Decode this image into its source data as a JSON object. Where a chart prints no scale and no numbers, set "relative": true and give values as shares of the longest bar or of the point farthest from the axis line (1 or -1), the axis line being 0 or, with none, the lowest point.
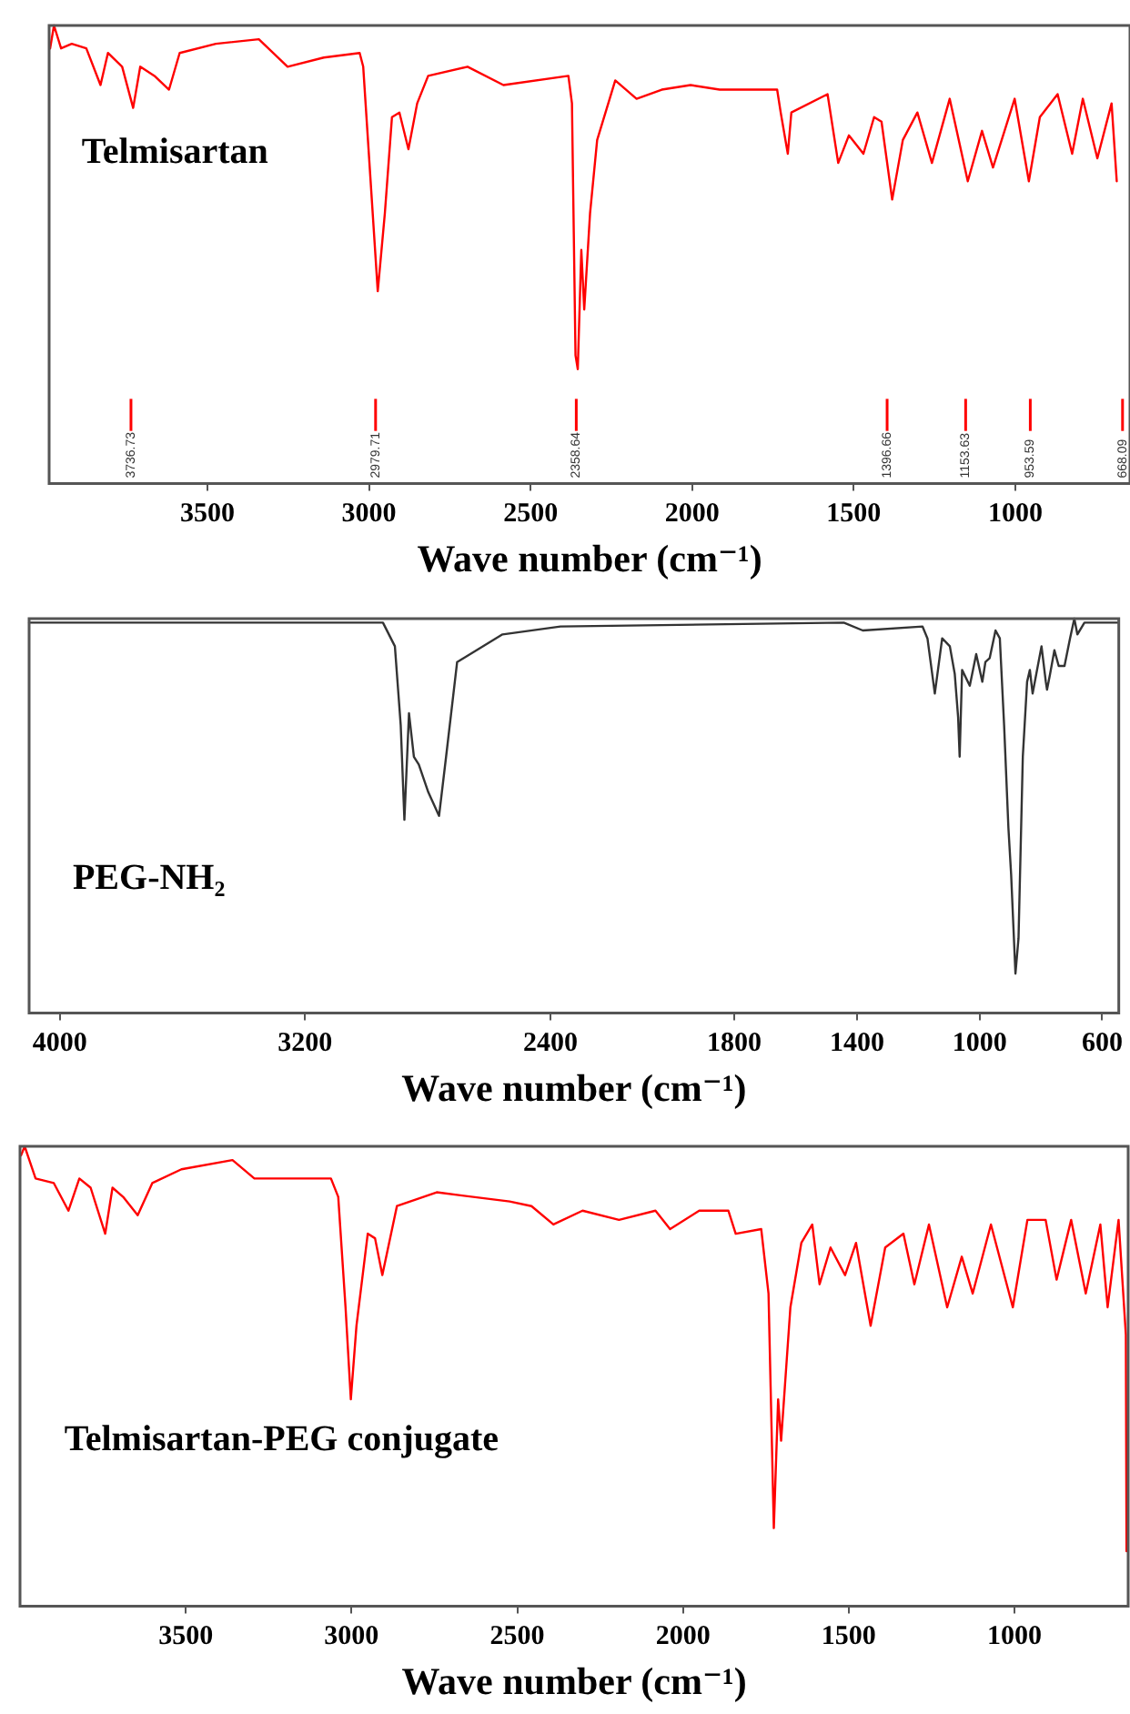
{
  "chart_data": [
    {
      "type": "line",
      "relative": true,
      "xlabel": "Wave number (cm⁻¹)",
      "annotations": [
        "Telmisartan"
      ],
      "xlim": [
        3990,
        645
      ],
      "xticks": [
        3500,
        3000,
        2500,
        2000,
        1500,
        1000
      ],
      "tick_labels": "x",
      "grid": false,
      "legend": false,
      "marker": "none",
      "line_style": "solid",
      "ref_lines": [
        {
          "axis": "x",
          "value": 3736.73,
          "label": "3736.73",
          "color": "#ff0000"
        },
        {
          "axis": "x",
          "value": 2979.71,
          "label": "2979.71",
          "color": "#ff0000"
        },
        {
          "axis": "x",
          "value": 2358.64,
          "label": "2358.64",
          "color": "#ff0000"
        },
        {
          "axis": "x",
          "value": 1396.66,
          "label": "1396.66",
          "color": "#ff0000"
        },
        {
          "axis": "x",
          "value": 1153.63,
          "label": "1153.63",
          "color": "#ff0000"
        },
        {
          "axis": "x",
          "value": 953.59,
          "label": "953.59",
          "color": "#ff0000"
        },
        {
          "axis": "x",
          "value": 668.09,
          "label": "668.09",
          "color": "#ff0000"
        }
      ],
      "series": [
        {
          "color": "#ff0000",
          "x": [
            3987,
            3975,
            3953,
            3920,
            3875,
            3831,
            3808,
            3764,
            3730,
            3708,
            3664,
            3619,
            3586,
            3474,
            3341,
            3252,
            3140,
            3029,
            3018,
            2996,
            2973,
            2951,
            2929,
            2906,
            2878,
            2851,
            2817,
            2695,
            2584,
            2383,
            2372,
            2361,
            2354,
            2343,
            2334,
            2316,
            2294,
            2238,
            2172,
            2094,
            2005,
            1915,
            1737,
            1726,
            1704,
            1693,
            1581,
            1548,
            1515,
            1470,
            1437,
            1414,
            1381,
            1348,
            1303,
            1258,
            1203,
            1147,
            1103,
            1069,
            1002,
            958,
            924,
            869,
            824,
            791,
            746,
            702,
            686
          ],
          "values": [
            0.95,
            1,
            0.95,
            0.96,
            0.95,
            0.87,
            0.94,
            0.91,
            0.82,
            0.91,
            0.89,
            0.86,
            0.94,
            0.96,
            0.97,
            0.91,
            0.93,
            0.94,
            0.91,
            0.67,
            0.42,
            0.59,
            0.8,
            0.81,
            0.73,
            0.83,
            0.89,
            0.91,
            0.87,
            0.89,
            0.83,
            0.28,
            0.25,
            0.51,
            0.38,
            0.59,
            0.75,
            0.88,
            0.84,
            0.86,
            0.87,
            0.86,
            0.86,
            0.81,
            0.72,
            0.81,
            0.85,
            0.7,
            0.76,
            0.72,
            0.8,
            0.79,
            0.62,
            0.75,
            0.81,
            0.7,
            0.84,
            0.66,
            0.77,
            0.69,
            0.84,
            0.66,
            0.8,
            0.85,
            0.72,
            0.84,
            0.71,
            0.83,
            0.66
          ]
        }
      ]
    },
    {
      "type": "line",
      "relative": true,
      "xlabel": "Wave number (cm⁻¹)",
      "annotations": [
        "PEG-NH₂"
      ],
      "xlim": [
        4100,
        546
      ],
      "xticks": [
        4000,
        3200,
        2400,
        1800,
        1400,
        1000,
        600
      ],
      "tick_labels": "x",
      "grid": false,
      "legend": false,
      "marker": "none",
      "line_style": "solid",
      "series": [
        {
          "color": "#333333",
          "x": [
            4100,
            2946,
            2907,
            2888,
            2876,
            2861,
            2845,
            2829,
            2798,
            2763,
            2740,
            2704,
            2556,
            2367,
            1443,
            1381,
            1186,
            1170,
            1146,
            1122,
            1097,
            1081,
            1070,
            1065,
            1057,
            1032,
            1011,
            991,
            981,
            967,
            948,
            934,
            920,
            906,
            897,
            883,
            873,
            859,
            845,
            836,
            827,
            815,
            798,
            784,
            780,
            770,
            756,
            742,
            723,
            705,
            691,
            681,
            658,
            546
          ],
          "values": [
            0.99,
            0.99,
            0.93,
            0.73,
            0.49,
            0.76,
            0.65,
            0.63,
            0.56,
            0.5,
            0.65,
            0.89,
            0.96,
            0.98,
            0.99,
            0.97,
            0.98,
            0.95,
            0.81,
            0.95,
            0.93,
            0.86,
            0.75,
            0.65,
            0.87,
            0.83,
            0.91,
            0.84,
            0.89,
            0.9,
            0.97,
            0.95,
            0.73,
            0.47,
            0.35,
            0.1,
            0.19,
            0.65,
            0.84,
            0.87,
            0.81,
            0.86,
            0.93,
            0.84,
            0.82,
            0.86,
            0.92,
            0.88,
            0.88,
            0.95,
            1,
            0.96,
            0.99,
            0.99
          ]
        }
      ]
    },
    {
      "type": "line",
      "relative": true,
      "xlabel": "Wave number (cm⁻¹)",
      "annotations": [
        "Telmisartan-PEG conjugate"
      ],
      "xlim": [
        4000,
        657
      ],
      "xticks": [
        3500,
        3000,
        2500,
        2000,
        1500,
        1000
      ],
      "tick_labels": "x",
      "grid": false,
      "legend": false,
      "marker": "none",
      "line_style": "solid",
      "series": [
        {
          "color": "#ff0000",
          "x": [
            3997,
            3986,
            3953,
            3898,
            3854,
            3821,
            3787,
            3743,
            3721,
            3689,
            3645,
            3601,
            3513,
            3359,
            3293,
            3183,
            3062,
            3040,
            3018,
            3002,
            2985,
            2951,
            2929,
            2907,
            2863,
            2743,
            2523,
            2457,
            2391,
            2303,
            2193,
            2083,
            2039,
            1951,
            1863,
            1841,
            1764,
            1742,
            1726,
            1713,
            1704,
            1676,
            1643,
            1610,
            1588,
            1555,
            1511,
            1478,
            1434,
            1390,
            1335,
            1302,
            1258,
            1203,
            1159,
            1126,
            1071,
            1005,
            961,
            906,
            873,
            829,
            785,
            741,
            719,
            686,
            664,
            662
          ],
          "values": [
            0.98,
            1,
            0.93,
            0.92,
            0.86,
            0.93,
            0.91,
            0.81,
            0.91,
            0.89,
            0.85,
            0.92,
            0.95,
            0.97,
            0.93,
            0.93,
            0.93,
            0.89,
            0.65,
            0.45,
            0.61,
            0.81,
            0.8,
            0.72,
            0.87,
            0.9,
            0.88,
            0.87,
            0.83,
            0.86,
            0.84,
            0.86,
            0.82,
            0.86,
            0.86,
            0.81,
            0.82,
            0.68,
            0.17,
            0.45,
            0.36,
            0.65,
            0.79,
            0.83,
            0.7,
            0.78,
            0.72,
            0.79,
            0.61,
            0.78,
            0.81,
            0.7,
            0.83,
            0.65,
            0.76,
            0.68,
            0.83,
            0.65,
            0.84,
            0.84,
            0.71,
            0.84,
            0.68,
            0.83,
            0.65,
            0.84,
            0.59,
            0.12
          ]
        }
      ]
    }
  ]
}
